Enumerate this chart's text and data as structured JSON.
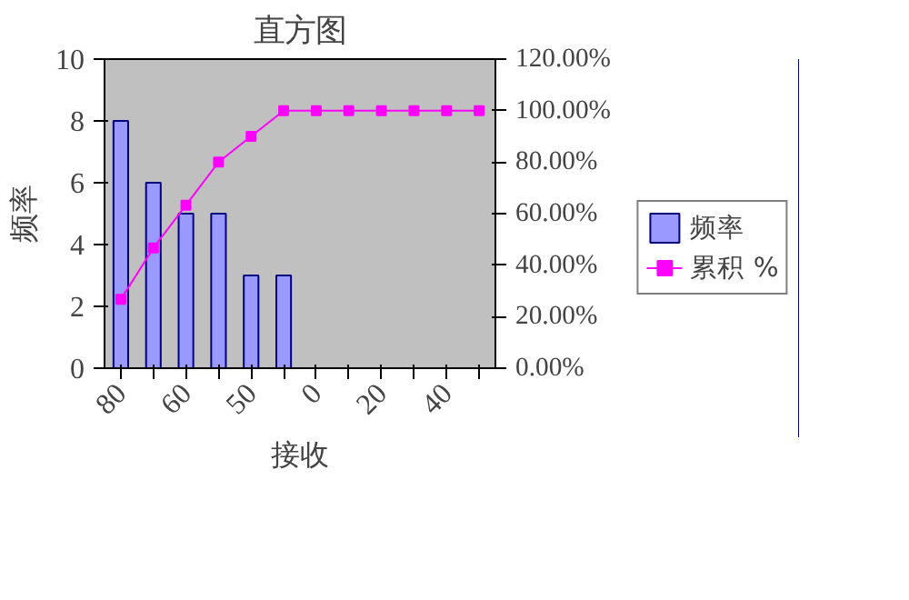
{
  "chart_data": {
    "type": "bar",
    "title": "直方图",
    "xlabel": "接收",
    "ylabel": "频率",
    "categories": [
      "80",
      null,
      "60",
      null,
      "50",
      null,
      "0",
      null,
      "20",
      null,
      "40",
      null
    ],
    "series": [
      {
        "name": "频率",
        "color": "#9999ff",
        "values": [
          8,
          6,
          5,
          5,
          3,
          3,
          0,
          0,
          0,
          0,
          0,
          0
        ]
      },
      {
        "name": "累积 %",
        "type": "line",
        "axis": "y2",
        "color": "#ff00ff",
        "marker": "square",
        "values": [
          26.7,
          46.7,
          63.3,
          80,
          90,
          100,
          100,
          100,
          100,
          100,
          100,
          100
        ]
      }
    ],
    "ylim": [
      0,
      10
    ],
    "yticks": [
      0,
      2,
      4,
      6,
      8,
      10
    ],
    "y2lim": [
      0,
      120
    ],
    "y2ticks": [
      {
        "value": 0,
        "label": "0.00%"
      },
      {
        "value": 20,
        "label": "20.00%"
      },
      {
        "value": 40,
        "label": "40.00%"
      },
      {
        "value": 60,
        "label": "60.00%"
      },
      {
        "value": 80,
        "label": "80.00%"
      },
      {
        "value": 100,
        "label": "100.00%"
      },
      {
        "value": 120,
        "label": "120.00%"
      }
    ],
    "legend": "right"
  }
}
